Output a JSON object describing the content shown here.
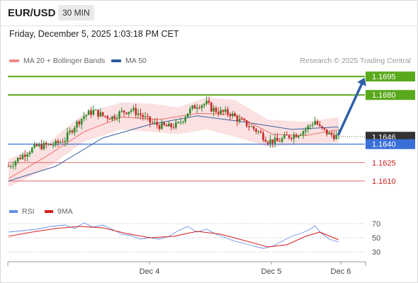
{
  "header": {
    "symbol": "EUR/USD",
    "timeframe": "30 MIN",
    "datetime": "Friday, December 5, 2025 1:03:18 PM CET"
  },
  "legend": {
    "ma20_label": "MA 20 + Bollinger Bands",
    "ma50_label": "MA 50",
    "credit": "Research © 2025 Trading Central"
  },
  "rsi_legend": {
    "rsi_label": "RSI",
    "ma_label": "9MA"
  },
  "colors": {
    "resistance": "#5aa81c",
    "support_blue": "#3a6fd8",
    "support_red": "#e06a6a",
    "candle_up": "#2e8b2e",
    "candle_down": "#c62828",
    "ma20": "#f07070",
    "ma50": "#3a5fa0",
    "bands": "#f8c8c8",
    "arrow": "#2f5fa8",
    "rsi": "#6a8ee8",
    "rsi_ma": "#d62020",
    "current_price_bg": "#333333"
  },
  "chart_data": [
    {
      "type": "candlestick",
      "title": "",
      "ylim": [
        1.1603,
        1.1702
      ],
      "x_ticks": [
        "Dec 4",
        "Dec 5",
        "Dec 6"
      ],
      "current_price": "1.1646",
      "price_levels": [
        {
          "label": "1.1695",
          "value": 1.1695,
          "kind": "resistance"
        },
        {
          "label": "1.1680",
          "value": 1.168,
          "kind": "resistance"
        },
        {
          "label": "1.1640",
          "value": 1.164,
          "kind": "pivot"
        },
        {
          "label": "1.1625",
          "value": 1.1625,
          "kind": "support"
        },
        {
          "label": "1.1610",
          "value": 1.161,
          "kind": "support"
        }
      ],
      "close_path": [
        [
          0,
          1.1622
        ],
        [
          4,
          1.1628
        ],
        [
          8,
          1.1634
        ],
        [
          12,
          1.1638
        ],
        [
          16,
          1.1639
        ],
        [
          20,
          1.164
        ],
        [
          24,
          1.1644
        ],
        [
          28,
          1.1655
        ],
        [
          32,
          1.1663
        ],
        [
          36,
          1.1667
        ],
        [
          40,
          1.1663
        ],
        [
          44,
          1.1662
        ],
        [
          48,
          1.1666
        ],
        [
          52,
          1.1668
        ],
        [
          56,
          1.1664
        ],
        [
          60,
          1.1658
        ],
        [
          64,
          1.1655
        ],
        [
          68,
          1.1654
        ],
        [
          72,
          1.1656
        ],
        [
          76,
          1.1666
        ],
        [
          80,
          1.1672
        ],
        [
          84,
          1.1673
        ],
        [
          86,
          1.1669
        ],
        [
          90,
          1.1666
        ],
        [
          94,
          1.1665
        ],
        [
          98,
          1.1659
        ],
        [
          102,
          1.1655
        ],
        [
          106,
          1.165
        ],
        [
          110,
          1.1643
        ],
        [
          114,
          1.1642
        ],
        [
          118,
          1.1646
        ],
        [
          122,
          1.1648
        ],
        [
          126,
          1.1652
        ],
        [
          130,
          1.1659
        ],
        [
          132,
          1.1653
        ],
        [
          136,
          1.1648
        ],
        [
          140,
          1.1646
        ]
      ],
      "ma20_path": [
        [
          0,
          1.1612
        ],
        [
          16,
          1.163
        ],
        [
          32,
          1.165
        ],
        [
          48,
          1.1662
        ],
        [
          64,
          1.166
        ],
        [
          80,
          1.1665
        ],
        [
          96,
          1.1664
        ],
        [
          112,
          1.1648
        ],
        [
          126,
          1.1647
        ],
        [
          140,
          1.1652
        ]
      ],
      "ma50_path": [
        [
          0,
          1.161
        ],
        [
          20,
          1.1622
        ],
        [
          40,
          1.1645
        ],
        [
          60,
          1.1656
        ],
        [
          80,
          1.1663
        ],
        [
          100,
          1.1658
        ],
        [
          120,
          1.1652
        ],
        [
          140,
          1.1654
        ]
      ],
      "bb_upper_path": [
        [
          0,
          1.1628
        ],
        [
          16,
          1.164
        ],
        [
          32,
          1.1665
        ],
        [
          48,
          1.1674
        ],
        [
          60,
          1.1673
        ],
        [
          72,
          1.167
        ],
        [
          84,
          1.1678
        ],
        [
          96,
          1.1676
        ],
        [
          110,
          1.166
        ],
        [
          126,
          1.1658
        ],
        [
          140,
          1.1662
        ]
      ],
      "bb_lower_path": [
        [
          0,
          1.1605
        ],
        [
          16,
          1.162
        ],
        [
          32,
          1.1642
        ],
        [
          48,
          1.1652
        ],
        [
          60,
          1.165
        ],
        [
          72,
          1.1648
        ],
        [
          84,
          1.1652
        ],
        [
          96,
          1.1646
        ],
        [
          110,
          1.1638
        ],
        [
          126,
          1.164
        ],
        [
          140,
          1.1641
        ]
      ],
      "forecast_arrow": {
        "from": [
          140,
          1.1648
        ],
        "to": [
          151,
          1.1694
        ]
      }
    },
    {
      "type": "line",
      "title": "",
      "ylim": [
        20,
        80
      ],
      "y_ticks": [
        "70",
        "50",
        "30"
      ],
      "series": [
        {
          "name": "RSI",
          "values": [
            [
              0,
              58
            ],
            [
              6,
              60
            ],
            [
              12,
              62
            ],
            [
              18,
              66
            ],
            [
              24,
              68
            ],
            [
              28,
              63
            ],
            [
              32,
              71
            ],
            [
              36,
              65
            ],
            [
              40,
              68
            ],
            [
              44,
              62
            ],
            [
              48,
              55
            ],
            [
              52,
              53
            ],
            [
              56,
              48
            ],
            [
              60,
              50
            ],
            [
              64,
              48
            ],
            [
              68,
              52
            ],
            [
              72,
              60
            ],
            [
              76,
              66
            ],
            [
              80,
              58
            ],
            [
              84,
              62
            ],
            [
              88,
              55
            ],
            [
              92,
              50
            ],
            [
              96,
              45
            ],
            [
              100,
              42
            ],
            [
              104,
              38
            ],
            [
              108,
              35
            ],
            [
              112,
              38
            ],
            [
              116,
              45
            ],
            [
              120,
              52
            ],
            [
              124,
              56
            ],
            [
              128,
              62
            ],
            [
              130,
              67
            ],
            [
              132,
              58
            ],
            [
              136,
              48
            ],
            [
              140,
              44
            ]
          ]
        },
        {
          "name": "9MA",
          "values": [
            [
              0,
              52
            ],
            [
              10,
              58
            ],
            [
              20,
              63
            ],
            [
              30,
              66
            ],
            [
              40,
              64
            ],
            [
              50,
              56
            ],
            [
              60,
              50
            ],
            [
              70,
              52
            ],
            [
              80,
              59
            ],
            [
              90,
              55
            ],
            [
              100,
              46
            ],
            [
              110,
              37
            ],
            [
              118,
              40
            ],
            [
              126,
              52
            ],
            [
              132,
              58
            ],
            [
              140,
              47
            ]
          ]
        }
      ]
    }
  ]
}
